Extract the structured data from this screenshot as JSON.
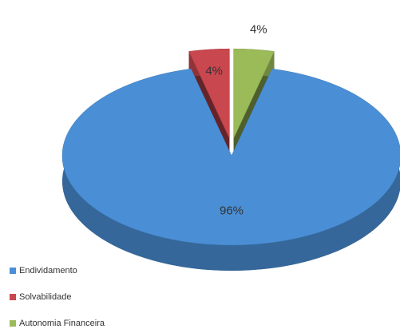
{
  "chart_data": {
    "type": "pie",
    "categories": [
      "Endividamento",
      "Solvabilidade",
      "Autonomia Financeira"
    ],
    "values": [
      96,
      4,
      4
    ],
    "value_labels": [
      "96%",
      "4%",
      "4%"
    ],
    "colors": [
      "#4a8fd6",
      "#c9474f",
      "#9bbb59"
    ],
    "legend": "bottom-left",
    "exploded": [
      false,
      true,
      true
    ]
  }
}
